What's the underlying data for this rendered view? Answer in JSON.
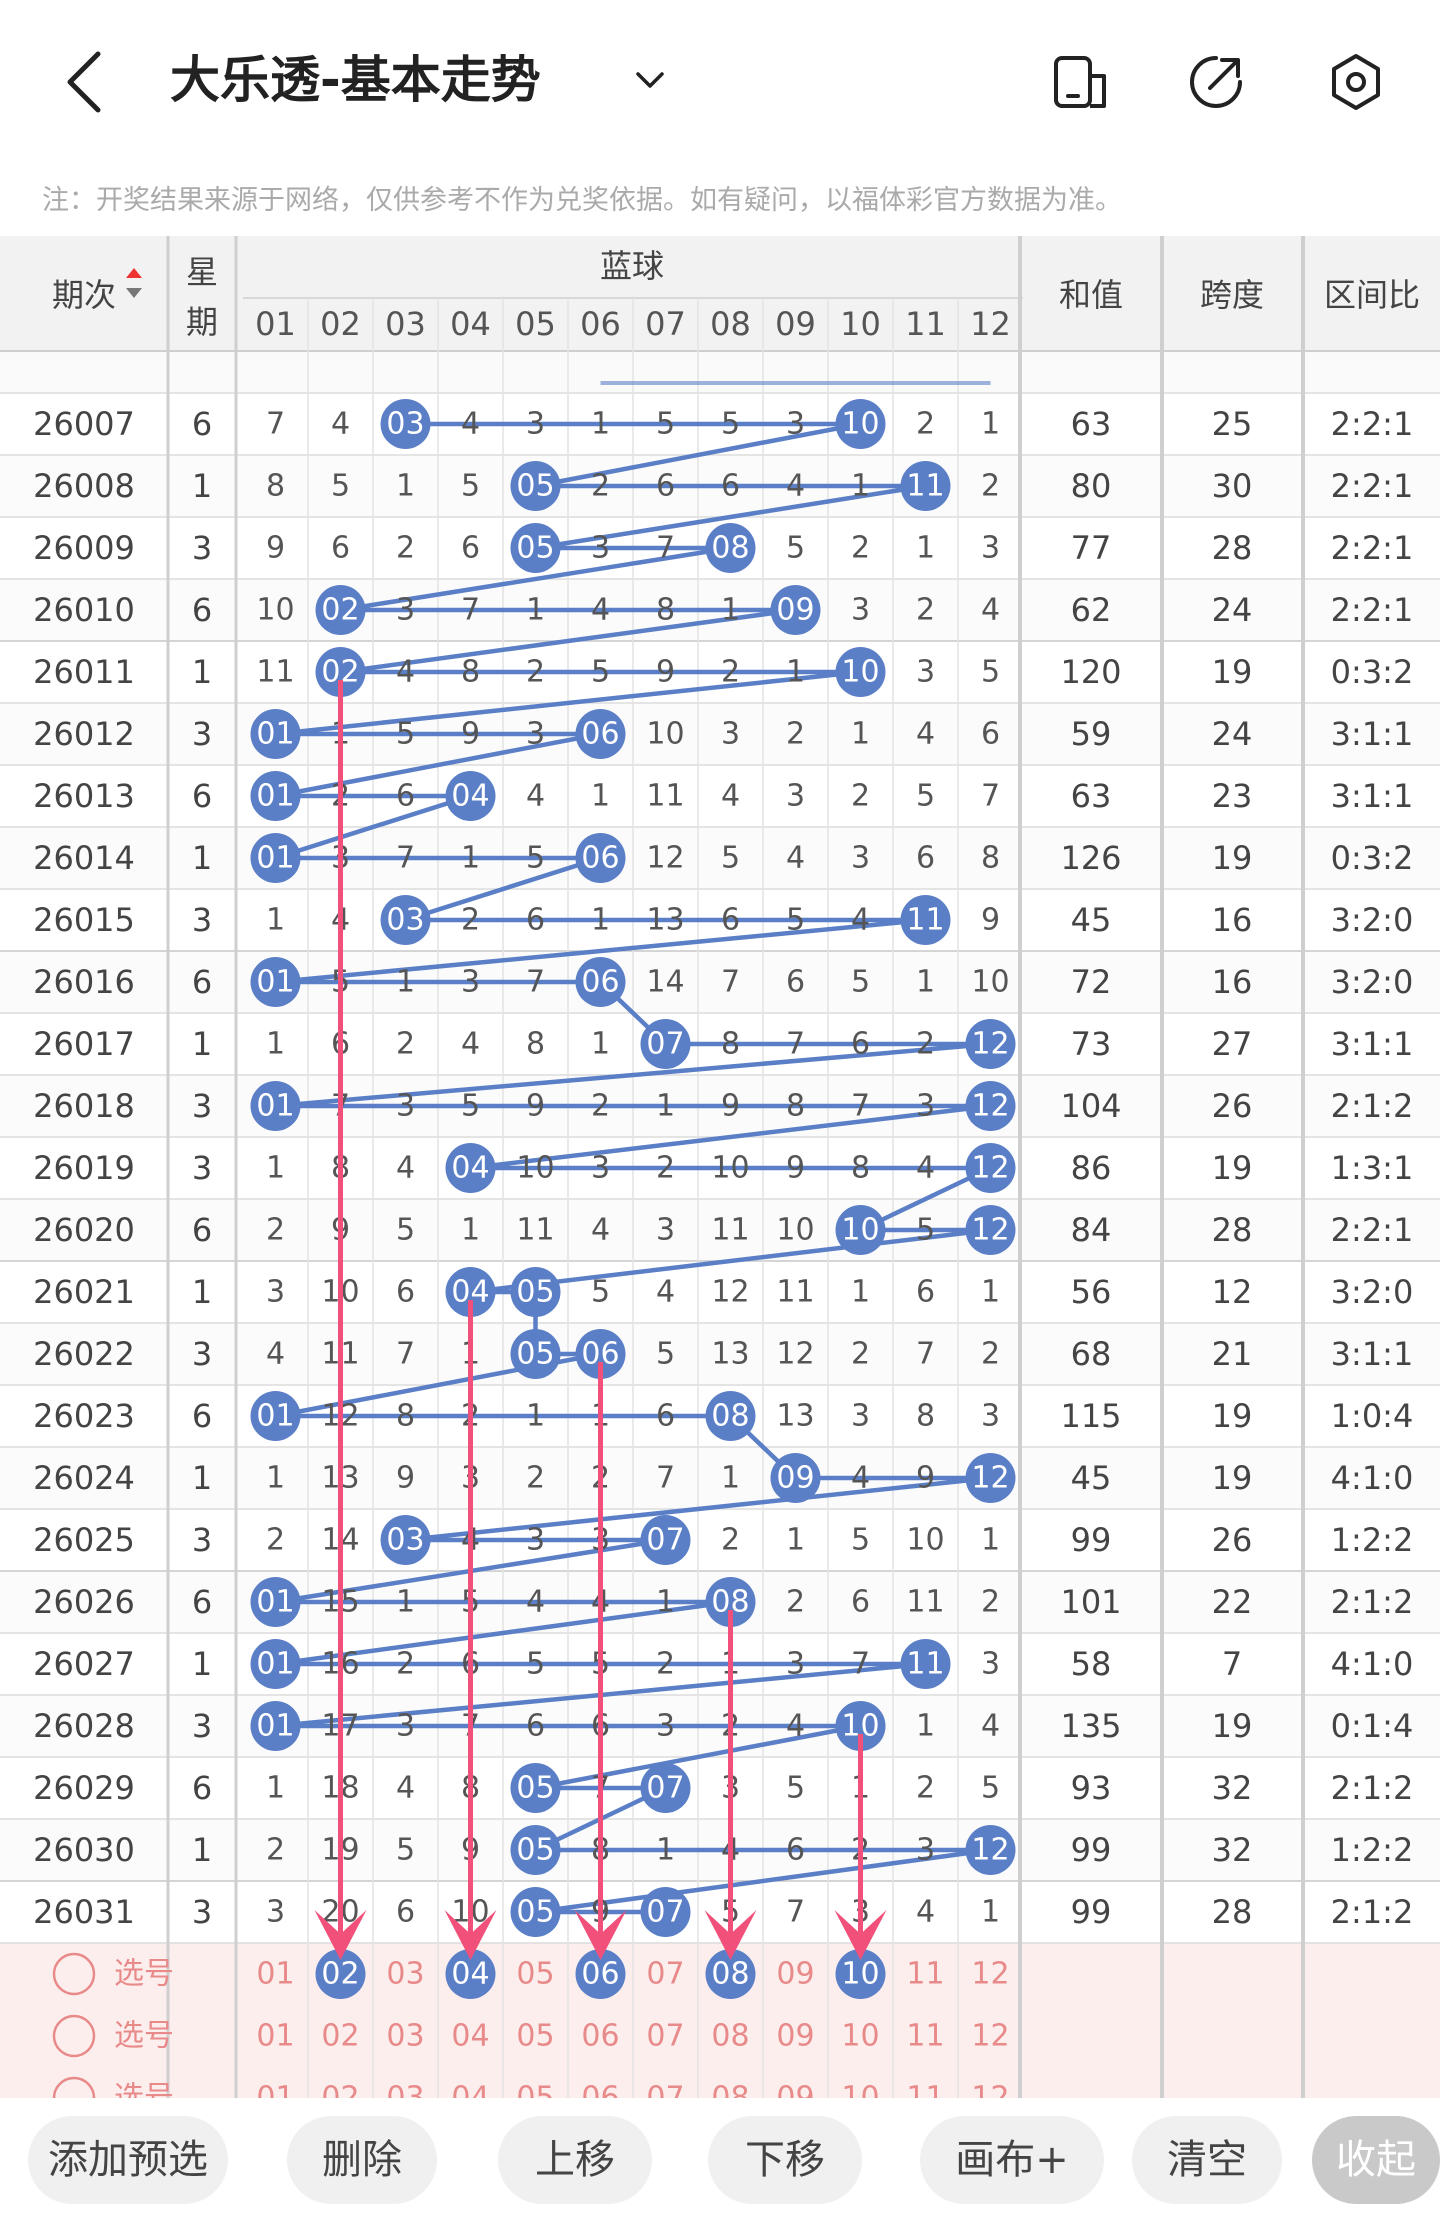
{
  "header": {
    "title": "大乐透-基本走势",
    "notice": "注：开奖结果来源于网络，仅供参考不作为兑奖依据。如有疑问，以福体彩官方数据为准。"
  },
  "table": {
    "col_period": "期次",
    "col_week": [
      "星",
      "期"
    ],
    "group_label": "蓝球",
    "col_sum": "和值",
    "col_span": "跨度",
    "col_ratio": "区间比",
    "numbers": [
      "01",
      "02",
      "03",
      "04",
      "05",
      "06",
      "07",
      "08",
      "09",
      "10",
      "11",
      "12"
    ],
    "rows": [
      {
        "period": "26007",
        "week": "6",
        "cells": [
          "7",
          "4",
          "03",
          "4",
          "3",
          "1",
          "5",
          "5",
          "3",
          "10",
          "2",
          "1"
        ],
        "hits": [
          3,
          10
        ],
        "sum": "63",
        "span": "25",
        "ratio": "2:2:1"
      },
      {
        "period": "26008",
        "week": "1",
        "cells": [
          "8",
          "5",
          "1",
          "5",
          "05",
          "2",
          "6",
          "6",
          "4",
          "1",
          "11",
          "2"
        ],
        "hits": [
          5,
          11
        ],
        "sum": "80",
        "span": "30",
        "ratio": "2:2:1"
      },
      {
        "period": "26009",
        "week": "3",
        "cells": [
          "9",
          "6",
          "2",
          "6",
          "05",
          "3",
          "7",
          "08",
          "5",
          "2",
          "1",
          "3"
        ],
        "hits": [
          5,
          8
        ],
        "sum": "77",
        "span": "28",
        "ratio": "2:2:1"
      },
      {
        "period": "26010",
        "week": "6",
        "cells": [
          "10",
          "02",
          "3",
          "7",
          "1",
          "4",
          "8",
          "1",
          "09",
          "3",
          "2",
          "4"
        ],
        "hits": [
          2,
          9
        ],
        "sum": "62",
        "span": "24",
        "ratio": "2:2:1"
      },
      {
        "period": "26011",
        "week": "1",
        "cells": [
          "11",
          "02",
          "4",
          "8",
          "2",
          "5",
          "9",
          "2",
          "1",
          "10",
          "3",
          "5"
        ],
        "hits": [
          2,
          10
        ],
        "sum": "120",
        "span": "19",
        "ratio": "0:3:2"
      },
      {
        "period": "26012",
        "week": "3",
        "cells": [
          "01",
          "1",
          "5",
          "9",
          "3",
          "06",
          "10",
          "3",
          "2",
          "1",
          "4",
          "6"
        ],
        "hits": [
          1,
          6
        ],
        "sum": "59",
        "span": "24",
        "ratio": "3:1:1"
      },
      {
        "period": "26013",
        "week": "6",
        "cells": [
          "01",
          "2",
          "6",
          "04",
          "4",
          "1",
          "11",
          "4",
          "3",
          "2",
          "5",
          "7"
        ],
        "hits": [
          1,
          4
        ],
        "sum": "63",
        "span": "23",
        "ratio": "3:1:1"
      },
      {
        "period": "26014",
        "week": "1",
        "cells": [
          "01",
          "3",
          "7",
          "1",
          "5",
          "06",
          "12",
          "5",
          "4",
          "3",
          "6",
          "8"
        ],
        "hits": [
          1,
          6
        ],
        "sum": "126",
        "span": "19",
        "ratio": "0:3:2"
      },
      {
        "period": "26015",
        "week": "3",
        "cells": [
          "1",
          "4",
          "03",
          "2",
          "6",
          "1",
          "13",
          "6",
          "5",
          "4",
          "11",
          "9"
        ],
        "hits": [
          3,
          11
        ],
        "sum": "45",
        "span": "16",
        "ratio": "3:2:0"
      },
      {
        "period": "26016",
        "week": "6",
        "cells": [
          "01",
          "5",
          "1",
          "3",
          "7",
          "06",
          "14",
          "7",
          "6",
          "5",
          "1",
          "10"
        ],
        "hits": [
          1,
          6
        ],
        "sum": "72",
        "span": "16",
        "ratio": "3:2:0"
      },
      {
        "period": "26017",
        "week": "1",
        "cells": [
          "1",
          "6",
          "2",
          "4",
          "8",
          "1",
          "07",
          "8",
          "7",
          "6",
          "2",
          "12"
        ],
        "hits": [
          7,
          12
        ],
        "sum": "73",
        "span": "27",
        "ratio": "3:1:1"
      },
      {
        "period": "26018",
        "week": "3",
        "cells": [
          "01",
          "7",
          "3",
          "5",
          "9",
          "2",
          "1",
          "9",
          "8",
          "7",
          "3",
          "12"
        ],
        "hits": [
          1,
          12
        ],
        "sum": "104",
        "span": "26",
        "ratio": "2:1:2"
      },
      {
        "period": "26019",
        "week": "3",
        "cells": [
          "1",
          "8",
          "4",
          "04",
          "10",
          "3",
          "2",
          "10",
          "9",
          "8",
          "4",
          "12"
        ],
        "hits": [
          4,
          12
        ],
        "sum": "86",
        "span": "19",
        "ratio": "1:3:1"
      },
      {
        "period": "26020",
        "week": "6",
        "cells": [
          "2",
          "9",
          "5",
          "1",
          "11",
          "4",
          "3",
          "11",
          "10",
          "10",
          "5",
          "12"
        ],
        "hits": [
          10,
          12
        ],
        "sum": "84",
        "span": "28",
        "ratio": "2:2:1"
      },
      {
        "period": "26021",
        "week": "1",
        "cells": [
          "3",
          "10",
          "6",
          "04",
          "05",
          "5",
          "4",
          "12",
          "11",
          "1",
          "6",
          "1"
        ],
        "hits": [
          4,
          5
        ],
        "sum": "56",
        "span": "12",
        "ratio": "3:2:0"
      },
      {
        "period": "26022",
        "week": "3",
        "cells": [
          "4",
          "11",
          "7",
          "1",
          "05",
          "06",
          "5",
          "13",
          "12",
          "2",
          "7",
          "2"
        ],
        "hits": [
          5,
          6
        ],
        "sum": "68",
        "span": "21",
        "ratio": "3:1:1"
      },
      {
        "period": "26023",
        "week": "6",
        "cells": [
          "01",
          "12",
          "8",
          "2",
          "1",
          "1",
          "6",
          "08",
          "13",
          "3",
          "8",
          "3"
        ],
        "hits": [
          1,
          8
        ],
        "sum": "115",
        "span": "19",
        "ratio": "1:0:4"
      },
      {
        "period": "26024",
        "week": "1",
        "cells": [
          "1",
          "13",
          "9",
          "3",
          "2",
          "2",
          "7",
          "1",
          "09",
          "4",
          "9",
          "12"
        ],
        "hits": [
          9,
          12
        ],
        "sum": "45",
        "span": "19",
        "ratio": "4:1:0"
      },
      {
        "period": "26025",
        "week": "3",
        "cells": [
          "2",
          "14",
          "03",
          "4",
          "3",
          "3",
          "07",
          "2",
          "1",
          "5",
          "10",
          "1"
        ],
        "hits": [
          3,
          7
        ],
        "sum": "99",
        "span": "26",
        "ratio": "1:2:2"
      },
      {
        "period": "26026",
        "week": "6",
        "cells": [
          "01",
          "15",
          "1",
          "5",
          "4",
          "4",
          "1",
          "08",
          "2",
          "6",
          "11",
          "2"
        ],
        "hits": [
          1,
          8
        ],
        "sum": "101",
        "span": "22",
        "ratio": "2:1:2"
      },
      {
        "period": "26027",
        "week": "1",
        "cells": [
          "01",
          "16",
          "2",
          "6",
          "5",
          "5",
          "2",
          "1",
          "3",
          "7",
          "11",
          "3"
        ],
        "hits": [
          1,
          11
        ],
        "sum": "58",
        "span": "7",
        "ratio": "4:1:0"
      },
      {
        "period": "26028",
        "week": "3",
        "cells": [
          "01",
          "17",
          "3",
          "7",
          "6",
          "6",
          "3",
          "2",
          "4",
          "10",
          "1",
          "4"
        ],
        "hits": [
          1,
          10
        ],
        "sum": "135",
        "span": "19",
        "ratio": "0:1:4"
      },
      {
        "period": "26029",
        "week": "6",
        "cells": [
          "1",
          "18",
          "4",
          "8",
          "05",
          "7",
          "07",
          "3",
          "5",
          "1",
          "2",
          "5"
        ],
        "hits": [
          5,
          7
        ],
        "sum": "93",
        "span": "32",
        "ratio": "2:1:2"
      },
      {
        "period": "26030",
        "week": "1",
        "cells": [
          "2",
          "19",
          "5",
          "9",
          "05",
          "8",
          "1",
          "4",
          "6",
          "2",
          "3",
          "12"
        ],
        "hits": [
          5,
          12
        ],
        "sum": "99",
        "span": "32",
        "ratio": "1:2:2"
      },
      {
        "period": "26031",
        "week": "3",
        "cells": [
          "3",
          "20",
          "6",
          "10",
          "05",
          "9",
          "07",
          "5",
          "7",
          "3",
          "4",
          "1"
        ],
        "hits": [
          5,
          7
        ],
        "sum": "99",
        "span": "28",
        "ratio": "2:1:2"
      }
    ],
    "selection_label": "选号",
    "selection_rows": [
      {
        "selected": [
          2,
          4,
          6,
          8,
          10
        ]
      },
      {
        "selected": []
      },
      {
        "selected": []
      }
    ]
  },
  "buttons": {
    "add": "添加预选",
    "delete": "删除",
    "up": "上移",
    "down": "下移",
    "canvas": "画布+",
    "clear": "清空",
    "collapse": "收起"
  },
  "colors": {
    "ball": "#5b7fc7",
    "line": "#5b7fc7",
    "arrow": "#f0507a",
    "pick_text": "#e88a8a",
    "pick_bg": "#fdeeee"
  }
}
